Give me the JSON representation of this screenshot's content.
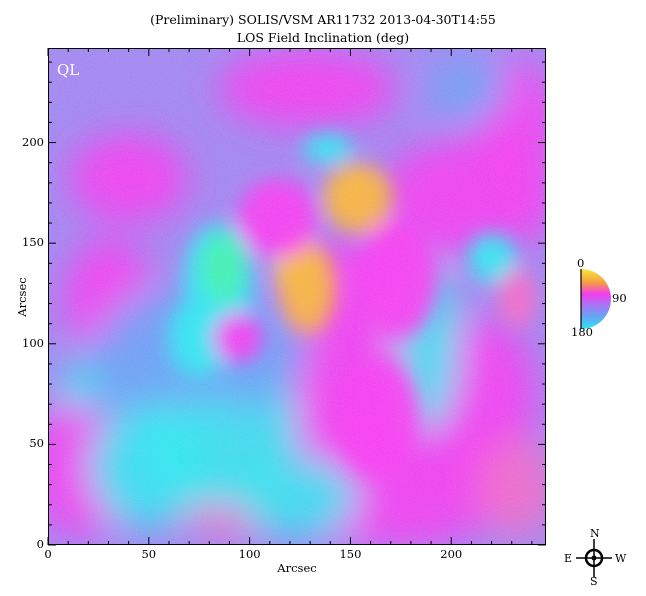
{
  "title": {
    "line1": "(Preliminary) SOLIS/VSM AR11732 2013-04-30T14:55",
    "line2": "LOS Field Inclination (deg)"
  },
  "plot": {
    "overlay_label": "QL",
    "x_axis": {
      "label": "Arcsec",
      "ticks": [
        "0",
        "50",
        "100",
        "150",
        "200"
      ],
      "range": [
        0,
        247
      ]
    },
    "y_axis": {
      "label": "Arcsec",
      "ticks": [
        "0",
        "50",
        "100",
        "150",
        "200"
      ],
      "range": [
        0,
        247
      ]
    },
    "colors": {
      "background": "#a085f0",
      "cyan": "#2ee6f0",
      "blue": "#6aa0f5",
      "magenta": "#f43cf0",
      "pink": "#f069c8",
      "orange": "#f5b040",
      "yellow": "#f6e640",
      "green": "#40f0b0"
    }
  },
  "color_wheel": {
    "label_top": "0",
    "label_right": "90",
    "label_bottom": "180"
  },
  "compass": {
    "north": "N",
    "south": "S",
    "east": "E",
    "west": "W"
  }
}
